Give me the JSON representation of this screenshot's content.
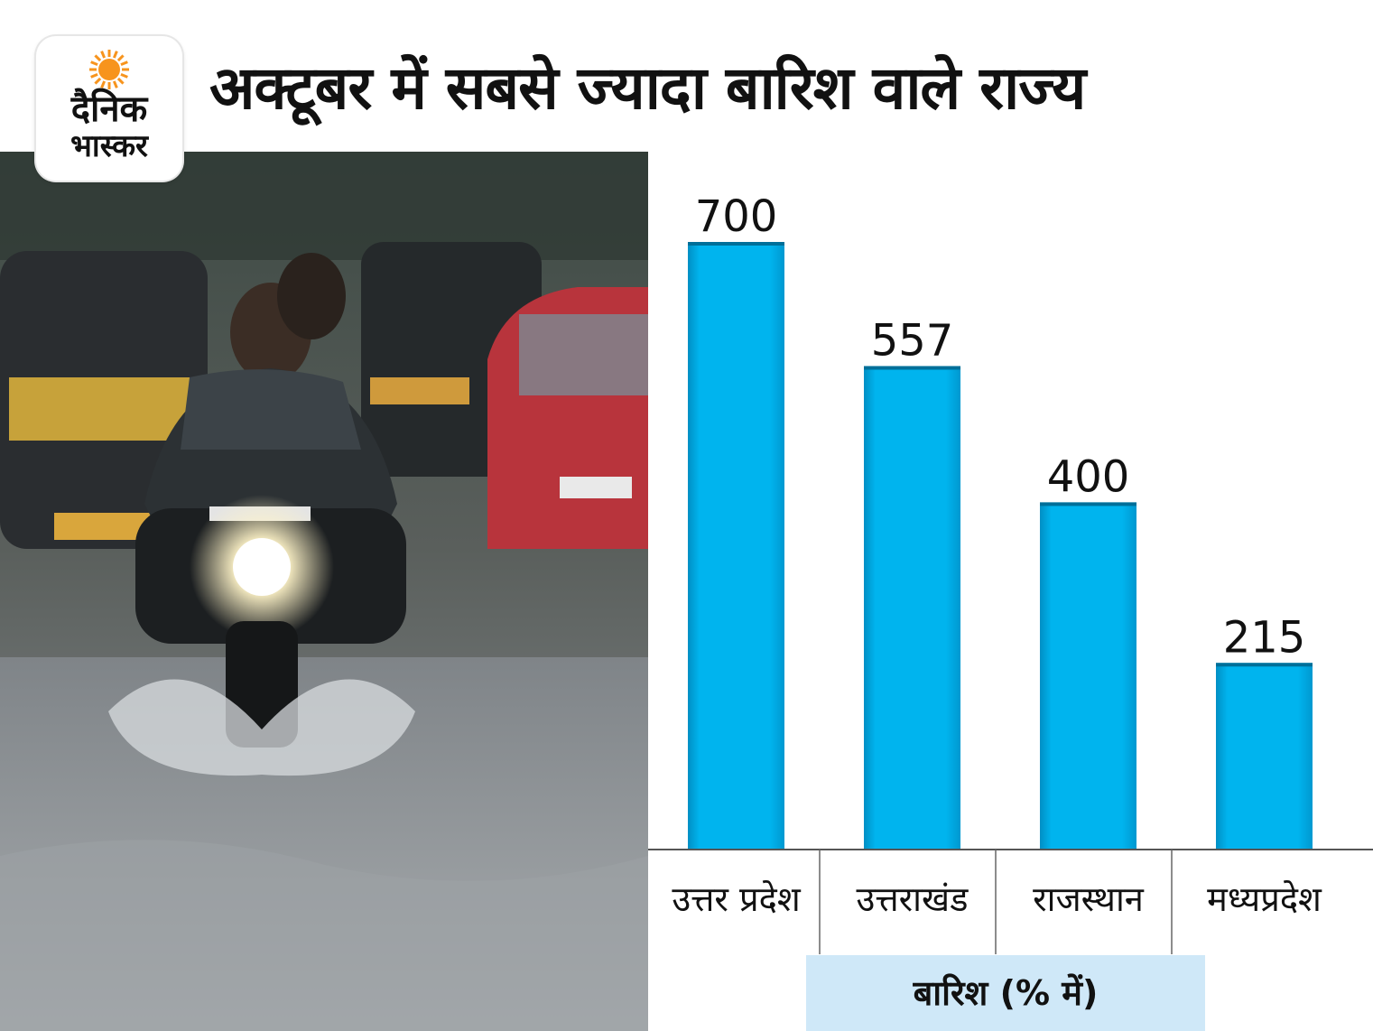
{
  "logo": {
    "line1": "दैनिक",
    "line2": "भास्कर",
    "sun_color": "#f7941d"
  },
  "chart_data": {
    "type": "bar",
    "title": "अक्टूबर में सबसे ज्यादा बारिश वाले राज्य",
    "categories": [
      "उत्तर प्रदेश",
      "उत्तराखंड",
      "राजस्थान",
      "मध्यप्रदेश"
    ],
    "values": [
      700,
      557,
      400,
      215
    ],
    "data_labels": [
      "700",
      "557",
      "400",
      "215"
    ],
    "xlabel": "बारिश (% में)",
    "ylabel": "",
    "ylim": [
      0,
      700
    ],
    "grid": false,
    "bar_color": "#00b4ee",
    "xlabel_background": "#cfe8f8"
  }
}
